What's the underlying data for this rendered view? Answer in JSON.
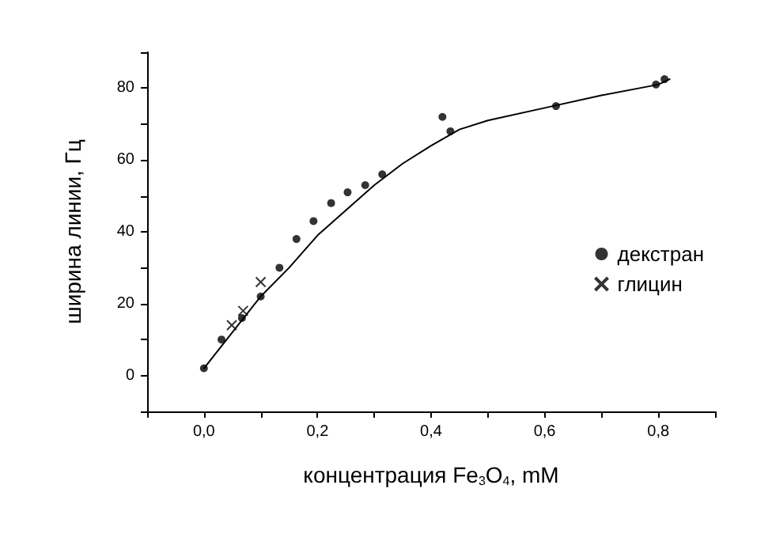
{
  "chart_data": {
    "type": "scatter",
    "xlabel": "концентрация Fe$_{3}$O$_{4}$, mM",
    "ylabel": "ширина линии, Гц",
    "xlim": [
      -0.1,
      0.9
    ],
    "ylim": [
      -10,
      90
    ],
    "xticks": [
      {
        "value": -0.1,
        "label": null
      },
      {
        "value": 0,
        "label": "0,0"
      },
      {
        "value": 0.1,
        "label": null
      },
      {
        "value": 0.2,
        "label": "0,2"
      },
      {
        "value": 0.3,
        "label": null
      },
      {
        "value": 0.4,
        "label": "0,4"
      },
      {
        "value": 0.5,
        "label": null
      },
      {
        "value": 0.6,
        "label": "0,6"
      },
      {
        "value": 0.7,
        "label": null
      },
      {
        "value": 0.8,
        "label": "0,8"
      },
      {
        "value": 0.9,
        "label": null
      }
    ],
    "yticks": [
      {
        "value": -10,
        "label": null
      },
      0,
      {
        "value": 10,
        "label": null
      },
      20,
      {
        "value": 30,
        "label": null
      },
      40,
      {
        "value": 50,
        "label": null
      },
      60,
      {
        "value": 70,
        "label": null
      },
      80,
      {
        "value": 90,
        "label": null
      }
    ],
    "grid": false,
    "legend": "right",
    "series": [
      {
        "name": "декстран",
        "marker": "circle",
        "color": "#000000",
        "x": [
          0,
          0.031,
          0.067,
          0.1,
          0.133,
          0.163,
          0.193,
          0.224,
          0.253,
          0.284,
          0.314,
          0.42,
          0.434,
          0.62,
          0.796,
          0.811
        ],
        "values": [
          2,
          10,
          16,
          22,
          30,
          38,
          43,
          48,
          51,
          53,
          56,
          72,
          68,
          75,
          81,
          82.5
        ]
      },
      {
        "name": "глицин",
        "marker": "cross",
        "color": "#000000",
        "x": [
          0.049,
          0.069,
          0.1
        ],
        "values": [
          14,
          18,
          26
        ]
      },
      {
        "type": "line",
        "marker": "none",
        "line_style": "solid",
        "color": "#000000",
        "x": [
          0,
          0.05,
          0.1,
          0.15,
          0.2,
          0.25,
          0.3,
          0.35,
          0.4,
          0.45,
          0.5,
          0.6,
          0.7,
          0.8,
          0.82
        ],
        "values": [
          2,
          12,
          22,
          30,
          39,
          46,
          53,
          59,
          64,
          68.5,
          71,
          74.5,
          78,
          81,
          82.5
        ]
      }
    ]
  }
}
